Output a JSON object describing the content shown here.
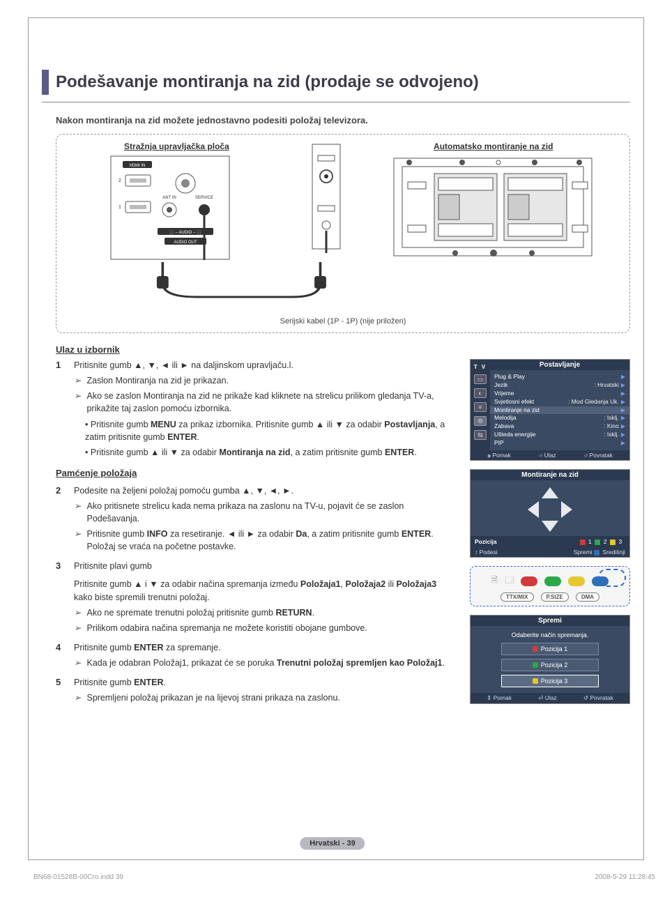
{
  "page": {
    "title": "Podešavanje montiranja na zid (prodaje se odvojeno)",
    "intro": "Nakon montiranja na zid možete jednostavno podesiti položaj televizora.",
    "page_num": "Hrvatski - 39",
    "print_left": "BN68-01528B-00Cro.indd   39",
    "print_right": "2008-5-29   11:28:45"
  },
  "diagram": {
    "rear_label": "Stražnja upravljačka ploča",
    "wall_label": "Automatsko montiranje na zid",
    "serial_cable": "Serijski kabel (1P - 1P) (nije priložen)",
    "ports": {
      "hdmi": "HDMI IN",
      "ant": "ANT IN",
      "service": "SERVICE",
      "audio": "AUDIO",
      "audio_out": "AUDIO OUT"
    }
  },
  "sections": {
    "enter_menu": "Ulaz u izbornik",
    "memorize": "Pamćenje položaja"
  },
  "steps": {
    "s1": {
      "text": "Pritisnite gumb ▲, ▼, ◄ ili ► na daljinskom upravljaču.l.",
      "sub1": "Zaslon Montiranja na zid je prikazan.",
      "sub2": "Ako se zaslon Montiranja na zid ne prikaže kad kliknete na strelicu prilikom gledanja TV-a, prikažite taj zaslon pomoću izbornika.",
      "b1a": "Pritisnite gumb ",
      "b1_menu": "MENU",
      "b1b": " za prikaz izbornika. Pritisnite gumb ▲ ili ▼ za odabir ",
      "b1_post": "Postavljanja",
      "b1c": ", a zatim pritisnite gumb ",
      "b1_enter": "ENTER",
      "b1d": ".",
      "b2a": "Pritisnite gumb ▲ ili ▼ za odabir ",
      "b2_mon": "Montiranja na zid",
      "b2b": ", a zatim pritisnite gumb ",
      "b2_enter": "ENTER",
      "b2c": "."
    },
    "s2": {
      "text": "Podesite na željeni položaj pomoću gumba ▲, ▼, ◄, ►.",
      "sub1": "Ako pritisnete strelicu kada nema prikaza na zaslonu na TV-u, pojavit će se zaslon Podešavanja.",
      "sub2a": "Pritisnite gumb ",
      "sub2_info": "INFO",
      "sub2b": " za resetiranje. ◄ ili ► za odabir ",
      "sub2_da": "Da",
      "sub2c": ", a zatim pritisnite gumb ",
      "sub2_enter": "ENTER",
      "sub2d": ". Položaj se vraća na početne postavke."
    },
    "s3": {
      "text": "Pritisnite plavi gumb",
      "p2a": "Pritisnite gumb ▲ i ▼ za odabir načina spremanja između ",
      "p2_p1": "Položaja1",
      "p2_c1": ", ",
      "p2_p2": "Položaja2",
      "p2_c2": " ili ",
      "p2_p3": "Položaja3",
      "p2b": " kako biste spremili trenutni položaj.",
      "sub1a": "Ako ne spremate trenutni položaj pritisnite gumb ",
      "sub1_return": "RETURN",
      "sub1b": ".",
      "sub2": "Prilikom odabira načina spremanja ne možete koristiti obojane gumbove."
    },
    "s4": {
      "texta": "Pritisnite gumb ",
      "text_enter": "ENTER",
      "textb": " za spremanje.",
      "sub1a": "Kada je odabran Položaj1, prikazat će se poruka ",
      "sub1_msg": "Trenutni položaj spremljen kao Položaj1",
      "sub1b": "."
    },
    "s5": {
      "texta": "Pritisnite gumb ",
      "text_enter": "ENTER",
      "textb": ".",
      "sub1": "Spremljeni položaj prikazan je na lijevoj strani prikaza na zaslonu."
    }
  },
  "osd_settings": {
    "tv": "T V",
    "header": "Postavljanje",
    "items": [
      {
        "label": "Plug & Play",
        "val": ""
      },
      {
        "label": "Jezik",
        "val": ": Hrvatski"
      },
      {
        "label": "Vrijeme",
        "val": ""
      },
      {
        "label": "Svjetlosni efekt",
        "val": ": Mod Gledanja Uk."
      },
      {
        "label": "Montiranje na zid",
        "val": "",
        "hl": true
      },
      {
        "label": "Melodija",
        "val": ": Isklj."
      },
      {
        "label": "Zabava",
        "val": ": Kino"
      },
      {
        "label": "Ušteda energije",
        "val": ": Isklj."
      },
      {
        "label": "PIP",
        "val": ""
      }
    ],
    "footer": {
      "move": "Pomak",
      "enter": "Ulaz",
      "return": "Povratak"
    }
  },
  "osd_wall": {
    "header": "Montiranje na zid",
    "position_label": "Pozicija",
    "positions": [
      "1",
      "2",
      "3"
    ],
    "pos_colors": [
      "#d23b3b",
      "#2aa84a",
      "#e6c62f"
    ],
    "footer": {
      "adjust": "Podesi",
      "save": "Spremi",
      "center": "Središnji"
    },
    "info_dot_color": "#2f6fb5"
  },
  "remote": {
    "colors": [
      "#d23b3b",
      "#2aa84a",
      "#e6c62f",
      "#2f6fb5"
    ],
    "btns": [
      "TTX/MIX",
      "P.SIZE",
      "DMA"
    ]
  },
  "save_dialog": {
    "title": "Spremi",
    "msg": "Odaberite način spremanja.",
    "opts": [
      "Pozicija 1",
      "Pozicija 2",
      "Pozicija 3"
    ],
    "opt_colors": [
      "#d23b3b",
      "#2aa84a",
      "#e6c62f"
    ],
    "footer": {
      "move": "Pomak",
      "enter": "Ulaz",
      "return": "Povratak"
    }
  },
  "colors": {
    "osd_bg": "#3a4a63",
    "osd_dark": "#2b3a50",
    "title_tab": "#5c5c8a",
    "dashed_blue": "#2a6bd4"
  }
}
